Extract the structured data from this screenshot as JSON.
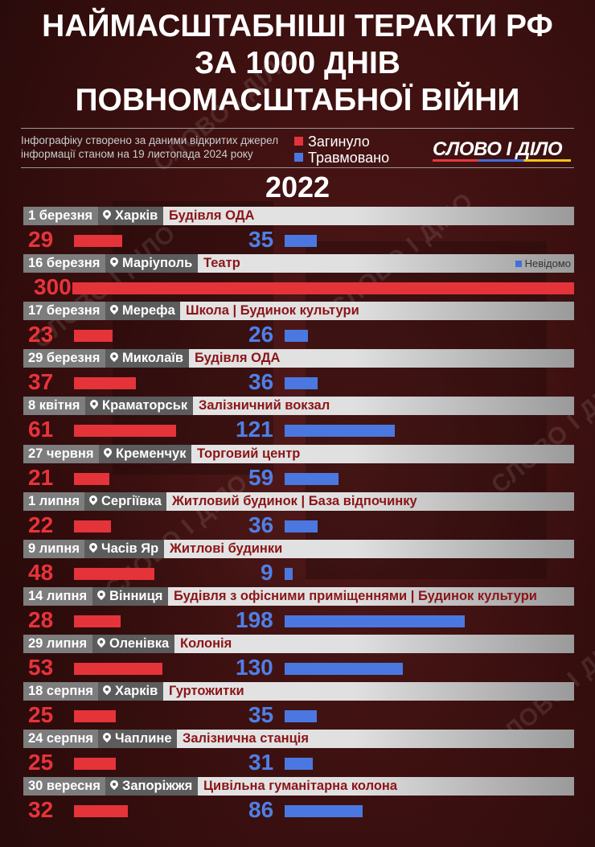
{
  "title": {
    "line1": "НАЙМАСШТАБНІШІ ТЕРАКТИ РФ",
    "line2": "ЗА 1000 ДНІВ",
    "line3": "ПОВНОМАСШТАБНОЇ ВІЙНИ"
  },
  "note": {
    "line1": "Інфографіку створено за даними відкритих джерел",
    "line2": "інформації станом на 19 листопада 2024 року"
  },
  "legend": {
    "killed": "Загинуло",
    "injured": "Травмовано",
    "unknown": "Невідомо"
  },
  "logo": "СЛОВО І ДІЛО",
  "watermark": "СЛОВО І ДІЛО",
  "colors": {
    "killed": "#e5333a",
    "injured": "#4a78e0",
    "target_text": "#8b1518"
  },
  "chart_data": {
    "type": "bar",
    "year": "2022",
    "series": [
      {
        "name": "Загинуло",
        "key": "killed"
      },
      {
        "name": "Травмовано",
        "key": "injured"
      }
    ],
    "rows": [
      {
        "date": "1 березня",
        "city": "Харків",
        "target": "Будівля ОДА",
        "killed": 29,
        "injured": 35
      },
      {
        "date": "16 березня",
        "city": "Маріуполь",
        "target": "Театр",
        "killed": 300,
        "injured": null,
        "injured_label": "Невідомо"
      },
      {
        "date": "17 березня",
        "city": "Мерефа",
        "target": "Школа | Будинок культури",
        "killed": 23,
        "injured": 26
      },
      {
        "date": "29 березня",
        "city": "Миколаїв",
        "target": "Будівля ОДА",
        "killed": 37,
        "injured": 36
      },
      {
        "date": "8 квітня",
        "city": "Краматорськ",
        "target": "Залізничний вокзал",
        "killed": 61,
        "injured": 121
      },
      {
        "date": "27 червня",
        "city": "Кременчук",
        "target": "Торговий центр",
        "killed": 21,
        "injured": 59
      },
      {
        "date": "1 липня",
        "city": "Сергіївка",
        "target": "Житловий будинок | База відпочинку",
        "killed": 22,
        "injured": 36
      },
      {
        "date": "9 липня",
        "city": "Часів Яр",
        "target": "Житлові будинки",
        "killed": 48,
        "injured": 9
      },
      {
        "date": "14 липня",
        "city": "Вінниця",
        "target": "Будівля з офісними приміщеннями | Будинок культури",
        "killed": 28,
        "injured": 198
      },
      {
        "date": "29 липня",
        "city": "Оленівка",
        "target": "Колонія",
        "killed": 53,
        "injured": 130
      },
      {
        "date": "18 серпня",
        "city": "Харків",
        "target": "Гуртожитки",
        "killed": 25,
        "injured": 35
      },
      {
        "date": "24 серпня",
        "city": "Чаплине",
        "target": "Залізнична станція",
        "killed": 25,
        "injured": 31
      },
      {
        "date": "30 вересня",
        "city": "Запоріжжя",
        "target": "Цивільна гуманітарна колона",
        "killed": 32,
        "injured": 86
      }
    ]
  }
}
